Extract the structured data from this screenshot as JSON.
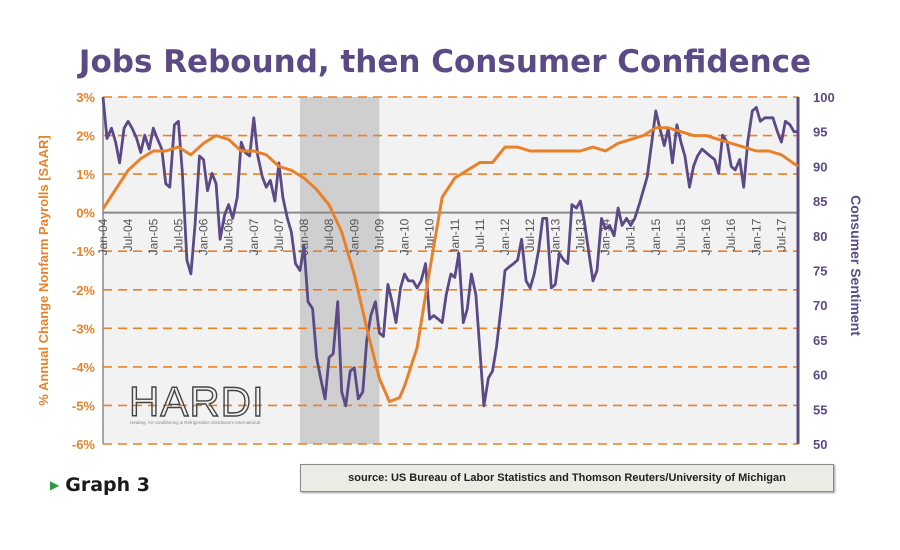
{
  "chart_data": {
    "type": "line",
    "title": "Jobs Rebound, then Consumer Confidence",
    "ylabel_left": "% Annual Change Nonfarm Payrolls [SAAR]",
    "ylabel_right": "Consumer Sentiment",
    "y_left_ticks": [
      "3%",
      "2%",
      "1%",
      "0%",
      "-1%",
      "-2%",
      "-3%",
      "-4%",
      "-5%",
      "-6%"
    ],
    "y_right_ticks": [
      "100",
      "95",
      "90",
      "85",
      "80",
      "75",
      "70",
      "65",
      "60",
      "55",
      "50"
    ],
    "ylim_left": [
      -6,
      3
    ],
    "ylim_right": [
      50,
      100
    ],
    "x_range": [
      2004.0,
      2017.83
    ],
    "x_ticks": [
      {
        "label": "Jan-04",
        "t": 2004.0
      },
      {
        "label": "Jul-04",
        "t": 2004.5
      },
      {
        "label": "Jan-05",
        "t": 2005.0
      },
      {
        "label": "Jul-05",
        "t": 2005.5
      },
      {
        "label": "Jan-06",
        "t": 2006.0
      },
      {
        "label": "Jul-06",
        "t": 2006.5
      },
      {
        "label": "Jan-07",
        "t": 2007.0
      },
      {
        "label": "Jul-07",
        "t": 2007.5
      },
      {
        "label": "Jan-08",
        "t": 2008.0
      },
      {
        "label": "Jul-08",
        "t": 2008.5
      },
      {
        "label": "Jan-09",
        "t": 2009.0
      },
      {
        "label": "Jul-09",
        "t": 2009.5
      },
      {
        "label": "Jan-10",
        "t": 2010.0
      },
      {
        "label": "Jul-10",
        "t": 2010.5
      },
      {
        "label": "Jan-11",
        "t": 2011.0
      },
      {
        "label": "Jul-11",
        "t": 2011.5
      },
      {
        "label": "Jan-12",
        "t": 2012.0
      },
      {
        "label": "Jul-12",
        "t": 2012.5
      },
      {
        "label": "Jan-13",
        "t": 2013.0
      },
      {
        "label": "Jul-13",
        "t": 2013.5
      },
      {
        "label": "Jan-14",
        "t": 2014.0
      },
      {
        "label": "Jul-14",
        "t": 2014.5
      },
      {
        "label": "Jan-15",
        "t": 2015.0
      },
      {
        "label": "Jul-15",
        "t": 2015.5
      },
      {
        "label": "Jan-16",
        "t": 2016.0
      },
      {
        "label": "Jul-16",
        "t": 2016.5
      },
      {
        "label": "Jan-17",
        "t": 2017.0
      },
      {
        "label": "Jul-17",
        "t": 2017.5
      }
    ],
    "recession_band": [
      2007.92,
      2009.5
    ],
    "grid": true,
    "colors": {
      "payrolls": "#e8822a",
      "sentiment": "#5b4a86",
      "title": "#5b4a86",
      "recession": "#cfcfcf",
      "plot_bg": "#f2f2f2"
    },
    "series": [
      {
        "axis": "left",
        "points": [
          [
            2004.0,
            0.1
          ],
          [
            2004.25,
            0.6
          ],
          [
            2004.5,
            1.1
          ],
          [
            2004.75,
            1.4
          ],
          [
            2005.0,
            1.6
          ],
          [
            2005.25,
            1.6
          ],
          [
            2005.5,
            1.7
          ],
          [
            2005.75,
            1.5
          ],
          [
            2006.0,
            1.8
          ],
          [
            2006.25,
            2.0
          ],
          [
            2006.5,
            1.9
          ],
          [
            2006.75,
            1.6
          ],
          [
            2007.0,
            1.6
          ],
          [
            2007.25,
            1.5
          ],
          [
            2007.5,
            1.2
          ],
          [
            2007.75,
            1.1
          ],
          [
            2008.0,
            0.9
          ],
          [
            2008.25,
            0.6
          ],
          [
            2008.5,
            0.2
          ],
          [
            2008.75,
            -0.5
          ],
          [
            2009.0,
            -1.6
          ],
          [
            2009.25,
            -3.0
          ],
          [
            2009.5,
            -4.3
          ],
          [
            2009.7,
            -4.9
          ],
          [
            2009.9,
            -4.8
          ],
          [
            2010.0,
            -4.5
          ],
          [
            2010.25,
            -3.5
          ],
          [
            2010.5,
            -1.5
          ],
          [
            2010.75,
            0.4
          ],
          [
            2011.0,
            0.9
          ],
          [
            2011.25,
            1.1
          ],
          [
            2011.5,
            1.3
          ],
          [
            2011.75,
            1.3
          ],
          [
            2012.0,
            1.7
          ],
          [
            2012.25,
            1.7
          ],
          [
            2012.5,
            1.6
          ],
          [
            2012.75,
            1.6
          ],
          [
            2013.0,
            1.6
          ],
          [
            2013.25,
            1.6
          ],
          [
            2013.5,
            1.6
          ],
          [
            2013.75,
            1.7
          ],
          [
            2014.0,
            1.6
          ],
          [
            2014.25,
            1.8
          ],
          [
            2014.5,
            1.9
          ],
          [
            2014.75,
            2.0
          ],
          [
            2015.0,
            2.2
          ],
          [
            2015.25,
            2.2
          ],
          [
            2015.5,
            2.1
          ],
          [
            2015.75,
            2.0
          ],
          [
            2016.0,
            2.0
          ],
          [
            2016.25,
            1.9
          ],
          [
            2016.5,
            1.8
          ],
          [
            2016.75,
            1.7
          ],
          [
            2017.0,
            1.6
          ],
          [
            2017.25,
            1.6
          ],
          [
            2017.5,
            1.5
          ],
          [
            2017.83,
            1.2
          ]
        ]
      },
      {
        "axis": "right",
        "points": [
          [
            2004.0,
            100.0
          ],
          [
            2004.08,
            94.0
          ],
          [
            2004.17,
            95.5
          ],
          [
            2004.25,
            93.5
          ],
          [
            2004.33,
            90.5
          ],
          [
            2004.42,
            95.5
          ],
          [
            2004.5,
            96.5
          ],
          [
            2004.58,
            95.5
          ],
          [
            2004.67,
            94.0
          ],
          [
            2004.75,
            92.0
          ],
          [
            2004.83,
            94.5
          ],
          [
            2004.92,
            92.5
          ],
          [
            2005.0,
            95.5
          ],
          [
            2005.08,
            94.0
          ],
          [
            2005.17,
            92.5
          ],
          [
            2005.25,
            87.5
          ],
          [
            2005.33,
            87.0
          ],
          [
            2005.42,
            96.0
          ],
          [
            2005.5,
            96.5
          ],
          [
            2005.58,
            89.0
          ],
          [
            2005.67,
            76.5
          ],
          [
            2005.75,
            74.5
          ],
          [
            2005.83,
            81.5
          ],
          [
            2005.92,
            91.5
          ],
          [
            2006.0,
            91.0
          ],
          [
            2006.08,
            86.5
          ],
          [
            2006.17,
            89.0
          ],
          [
            2006.25,
            87.5
          ],
          [
            2006.33,
            79.5
          ],
          [
            2006.42,
            83.0
          ],
          [
            2006.5,
            84.5
          ],
          [
            2006.58,
            82.5
          ],
          [
            2006.67,
            85.5
          ],
          [
            2006.75,
            93.5
          ],
          [
            2006.83,
            92.0
          ],
          [
            2006.92,
            91.5
          ],
          [
            2007.0,
            97.0
          ],
          [
            2007.08,
            91.5
          ],
          [
            2007.17,
            88.5
          ],
          [
            2007.25,
            87.0
          ],
          [
            2007.33,
            88.0
          ],
          [
            2007.42,
            85.0
          ],
          [
            2007.5,
            90.5
          ],
          [
            2007.58,
            85.5
          ],
          [
            2007.67,
            82.5
          ],
          [
            2007.75,
            80.5
          ],
          [
            2007.83,
            76.0
          ],
          [
            2007.92,
            75.0
          ],
          [
            2008.0,
            78.5
          ],
          [
            2008.08,
            70.5
          ],
          [
            2008.17,
            69.5
          ],
          [
            2008.25,
            62.5
          ],
          [
            2008.33,
            59.5
          ],
          [
            2008.42,
            56.5
          ],
          [
            2008.5,
            62.5
          ],
          [
            2008.58,
            63.0
          ],
          [
            2008.67,
            70.5
          ],
          [
            2008.75,
            57.5
          ],
          [
            2008.83,
            55.5
          ],
          [
            2008.92,
            60.5
          ],
          [
            2009.0,
            61.0
          ],
          [
            2009.08,
            56.5
          ],
          [
            2009.17,
            57.5
          ],
          [
            2009.25,
            65.0
          ],
          [
            2009.33,
            68.5
          ],
          [
            2009.42,
            70.5
          ],
          [
            2009.5,
            66.0
          ],
          [
            2009.58,
            65.5
          ],
          [
            2009.67,
            73.0
          ],
          [
            2009.75,
            70.5
          ],
          [
            2009.83,
            67.5
          ],
          [
            2009.92,
            72.5
          ],
          [
            2010.0,
            74.5
          ],
          [
            2010.08,
            73.5
          ],
          [
            2010.17,
            73.5
          ],
          [
            2010.25,
            72.5
          ],
          [
            2010.33,
            73.5
          ],
          [
            2010.42,
            76.0
          ],
          [
            2010.5,
            68.0
          ],
          [
            2010.58,
            68.5
          ],
          [
            2010.67,
            68.0
          ],
          [
            2010.75,
            67.5
          ],
          [
            2010.83,
            71.5
          ],
          [
            2010.92,
            74.5
          ],
          [
            2011.0,
            74.0
          ],
          [
            2011.08,
            77.5
          ],
          [
            2011.17,
            67.5
          ],
          [
            2011.25,
            69.5
          ],
          [
            2011.33,
            74.5
          ],
          [
            2011.42,
            71.5
          ],
          [
            2011.5,
            63.5
          ],
          [
            2011.58,
            55.5
          ],
          [
            2011.67,
            59.5
          ],
          [
            2011.75,
            60.5
          ],
          [
            2011.83,
            64.0
          ],
          [
            2011.92,
            69.5
          ],
          [
            2012.0,
            75.0
          ],
          [
            2012.08,
            75.5
          ],
          [
            2012.17,
            76.0
          ],
          [
            2012.25,
            76.5
          ],
          [
            2012.33,
            79.5
          ],
          [
            2012.42,
            73.5
          ],
          [
            2012.5,
            72.5
          ],
          [
            2012.58,
            74.5
          ],
          [
            2012.67,
            78.0
          ],
          [
            2012.75,
            82.5
          ],
          [
            2012.83,
            82.5
          ],
          [
            2012.92,
            72.5
          ],
          [
            2013.0,
            73.0
          ],
          [
            2013.08,
            77.5
          ],
          [
            2013.17,
            76.5
          ],
          [
            2013.25,
            76.0
          ],
          [
            2013.33,
            84.5
          ],
          [
            2013.42,
            84.0
          ],
          [
            2013.5,
            85.0
          ],
          [
            2013.58,
            82.0
          ],
          [
            2013.67,
            77.5
          ],
          [
            2013.75,
            73.5
          ],
          [
            2013.83,
            75.0
          ],
          [
            2013.92,
            82.5
          ],
          [
            2014.0,
            81.0
          ],
          [
            2014.08,
            81.5
          ],
          [
            2014.17,
            80.0
          ],
          [
            2014.25,
            84.0
          ],
          [
            2014.33,
            81.5
          ],
          [
            2014.42,
            82.5
          ],
          [
            2014.5,
            81.5
          ],
          [
            2014.58,
            82.5
          ],
          [
            2014.67,
            84.5
          ],
          [
            2014.75,
            86.5
          ],
          [
            2014.83,
            88.5
          ],
          [
            2014.92,
            93.5
          ],
          [
            2015.0,
            98.0
          ],
          [
            2015.08,
            95.5
          ],
          [
            2015.17,
            93.0
          ],
          [
            2015.25,
            95.5
          ],
          [
            2015.33,
            90.5
          ],
          [
            2015.42,
            96.0
          ],
          [
            2015.5,
            93.5
          ],
          [
            2015.58,
            91.5
          ],
          [
            2015.67,
            87.0
          ],
          [
            2015.75,
            90.0
          ],
          [
            2015.83,
            91.5
          ],
          [
            2015.92,
            92.5
          ],
          [
            2016.0,
            92.0
          ],
          [
            2016.08,
            91.5
          ],
          [
            2016.17,
            91.0
          ],
          [
            2016.25,
            89.0
          ],
          [
            2016.33,
            94.5
          ],
          [
            2016.42,
            93.5
          ],
          [
            2016.5,
            90.0
          ],
          [
            2016.58,
            89.5
          ],
          [
            2016.67,
            91.0
          ],
          [
            2016.75,
            87.0
          ],
          [
            2016.83,
            93.5
          ],
          [
            2016.92,
            98.0
          ],
          [
            2017.0,
            98.5
          ],
          [
            2017.08,
            96.5
          ],
          [
            2017.17,
            97.0
          ],
          [
            2017.25,
            97.0
          ],
          [
            2017.33,
            97.0
          ],
          [
            2017.42,
            95.0
          ],
          [
            2017.5,
            93.5
          ],
          [
            2017.58,
            96.5
          ],
          [
            2017.67,
            96.0
          ],
          [
            2017.75,
            95.0
          ],
          [
            2017.83,
            95.0
          ]
        ]
      }
    ]
  },
  "logo": {
    "text": "HARDI",
    "tagline": "Heating, Air-conditioning & Refrigeration Distributors International"
  },
  "caption": "Graph 3",
  "source": "source: US Bureau of Labor Statistics and Thomson Reuters/University of Michigan"
}
